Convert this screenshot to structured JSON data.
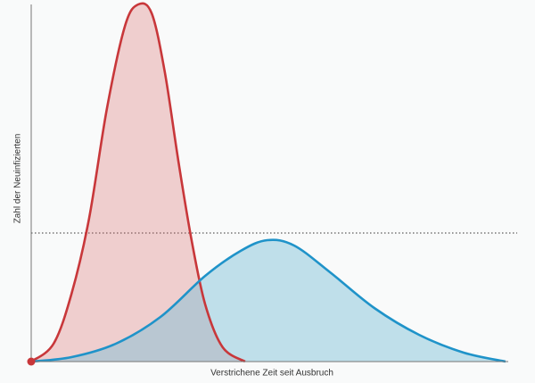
{
  "chart_data": {
    "type": "area",
    "x_label": "Verstrichene Zeit seit Ausbruch",
    "y_label": "Zahl der Neuinfizierten",
    "xlim": [
      0,
      100
    ],
    "ylim": [
      0,
      100
    ],
    "hline": 36,
    "hline_color": "#333333",
    "series": [
      {
        "color": "#c8373a",
        "fill": "rgba(214,92,92,0.28)",
        "x": [
          0,
          4.6,
          8.3,
          11.9,
          15.6,
          19.3,
          22,
          24.8,
          27.5,
          30.3,
          33,
          35.8,
          39.4,
          44
        ],
        "values": [
          0,
          5,
          19,
          40,
          71,
          94,
          100,
          97.5,
          81,
          56,
          34,
          16,
          4,
          0
        ]
      },
      {
        "color": "#1f93c9",
        "fill": "rgba(120,190,215,0.45)",
        "x": [
          0,
          8.3,
          17.4,
          26.6,
          35.8,
          43.1,
          48.6,
          54.1,
          61.5,
          70.6,
          79.8,
          89,
          97.6
        ],
        "values": [
          0,
          1.25,
          5,
          12.5,
          24,
          31,
          34,
          32.5,
          25,
          15,
          7.5,
          2.5,
          0
        ]
      }
    ]
  }
}
